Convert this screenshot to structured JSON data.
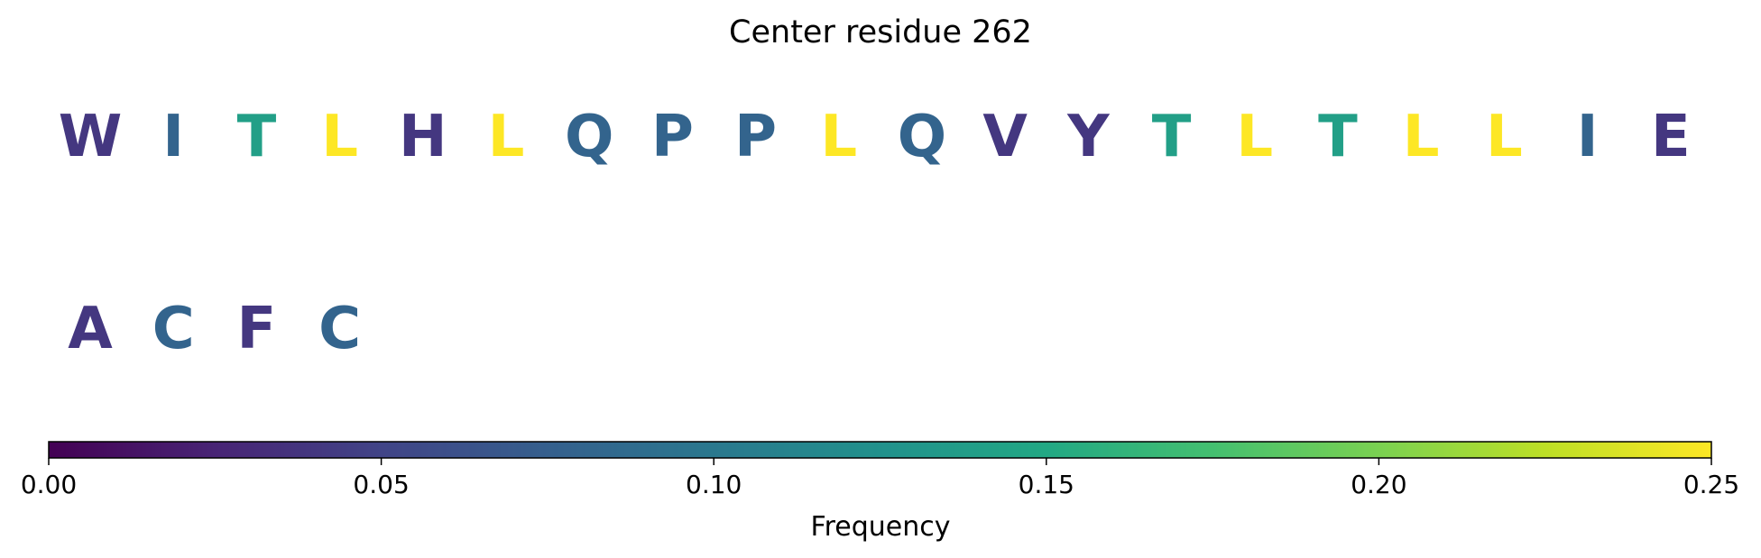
{
  "chart_data": {
    "type": "sequence-logo",
    "title": "Center residue 262",
    "rows": [
      {
        "residues": [
          {
            "letter": "W",
            "frequency": 0.04
          },
          {
            "letter": "I",
            "frequency": 0.08
          },
          {
            "letter": "T",
            "frequency": 0.14
          },
          {
            "letter": "L",
            "frequency": 0.25
          },
          {
            "letter": "H",
            "frequency": 0.04
          },
          {
            "letter": "L",
            "frequency": 0.25
          },
          {
            "letter": "Q",
            "frequency": 0.08
          },
          {
            "letter": "P",
            "frequency": 0.08
          },
          {
            "letter": "P",
            "frequency": 0.08
          },
          {
            "letter": "L",
            "frequency": 0.25
          },
          {
            "letter": "Q",
            "frequency": 0.08
          },
          {
            "letter": "V",
            "frequency": 0.04
          },
          {
            "letter": "Y",
            "frequency": 0.04
          },
          {
            "letter": "T",
            "frequency": 0.14
          },
          {
            "letter": "L",
            "frequency": 0.25
          },
          {
            "letter": "T",
            "frequency": 0.14
          },
          {
            "letter": "L",
            "frequency": 0.25
          },
          {
            "letter": "L",
            "frequency": 0.25
          },
          {
            "letter": "I",
            "frequency": 0.08
          },
          {
            "letter": "E",
            "frequency": 0.04
          }
        ]
      },
      {
        "residues": [
          {
            "letter": "A",
            "frequency": 0.04
          },
          {
            "letter": "C",
            "frequency": 0.08
          },
          {
            "letter": "F",
            "frequency": 0.04
          },
          {
            "letter": "C",
            "frequency": 0.08
          }
        ]
      }
    ],
    "colorbar": {
      "colormap": "viridis",
      "range": [
        0,
        0.25
      ],
      "ticks": [
        "0.00",
        "0.05",
        "0.10",
        "0.15",
        "0.20",
        "0.25"
      ],
      "label": "Frequency"
    }
  }
}
